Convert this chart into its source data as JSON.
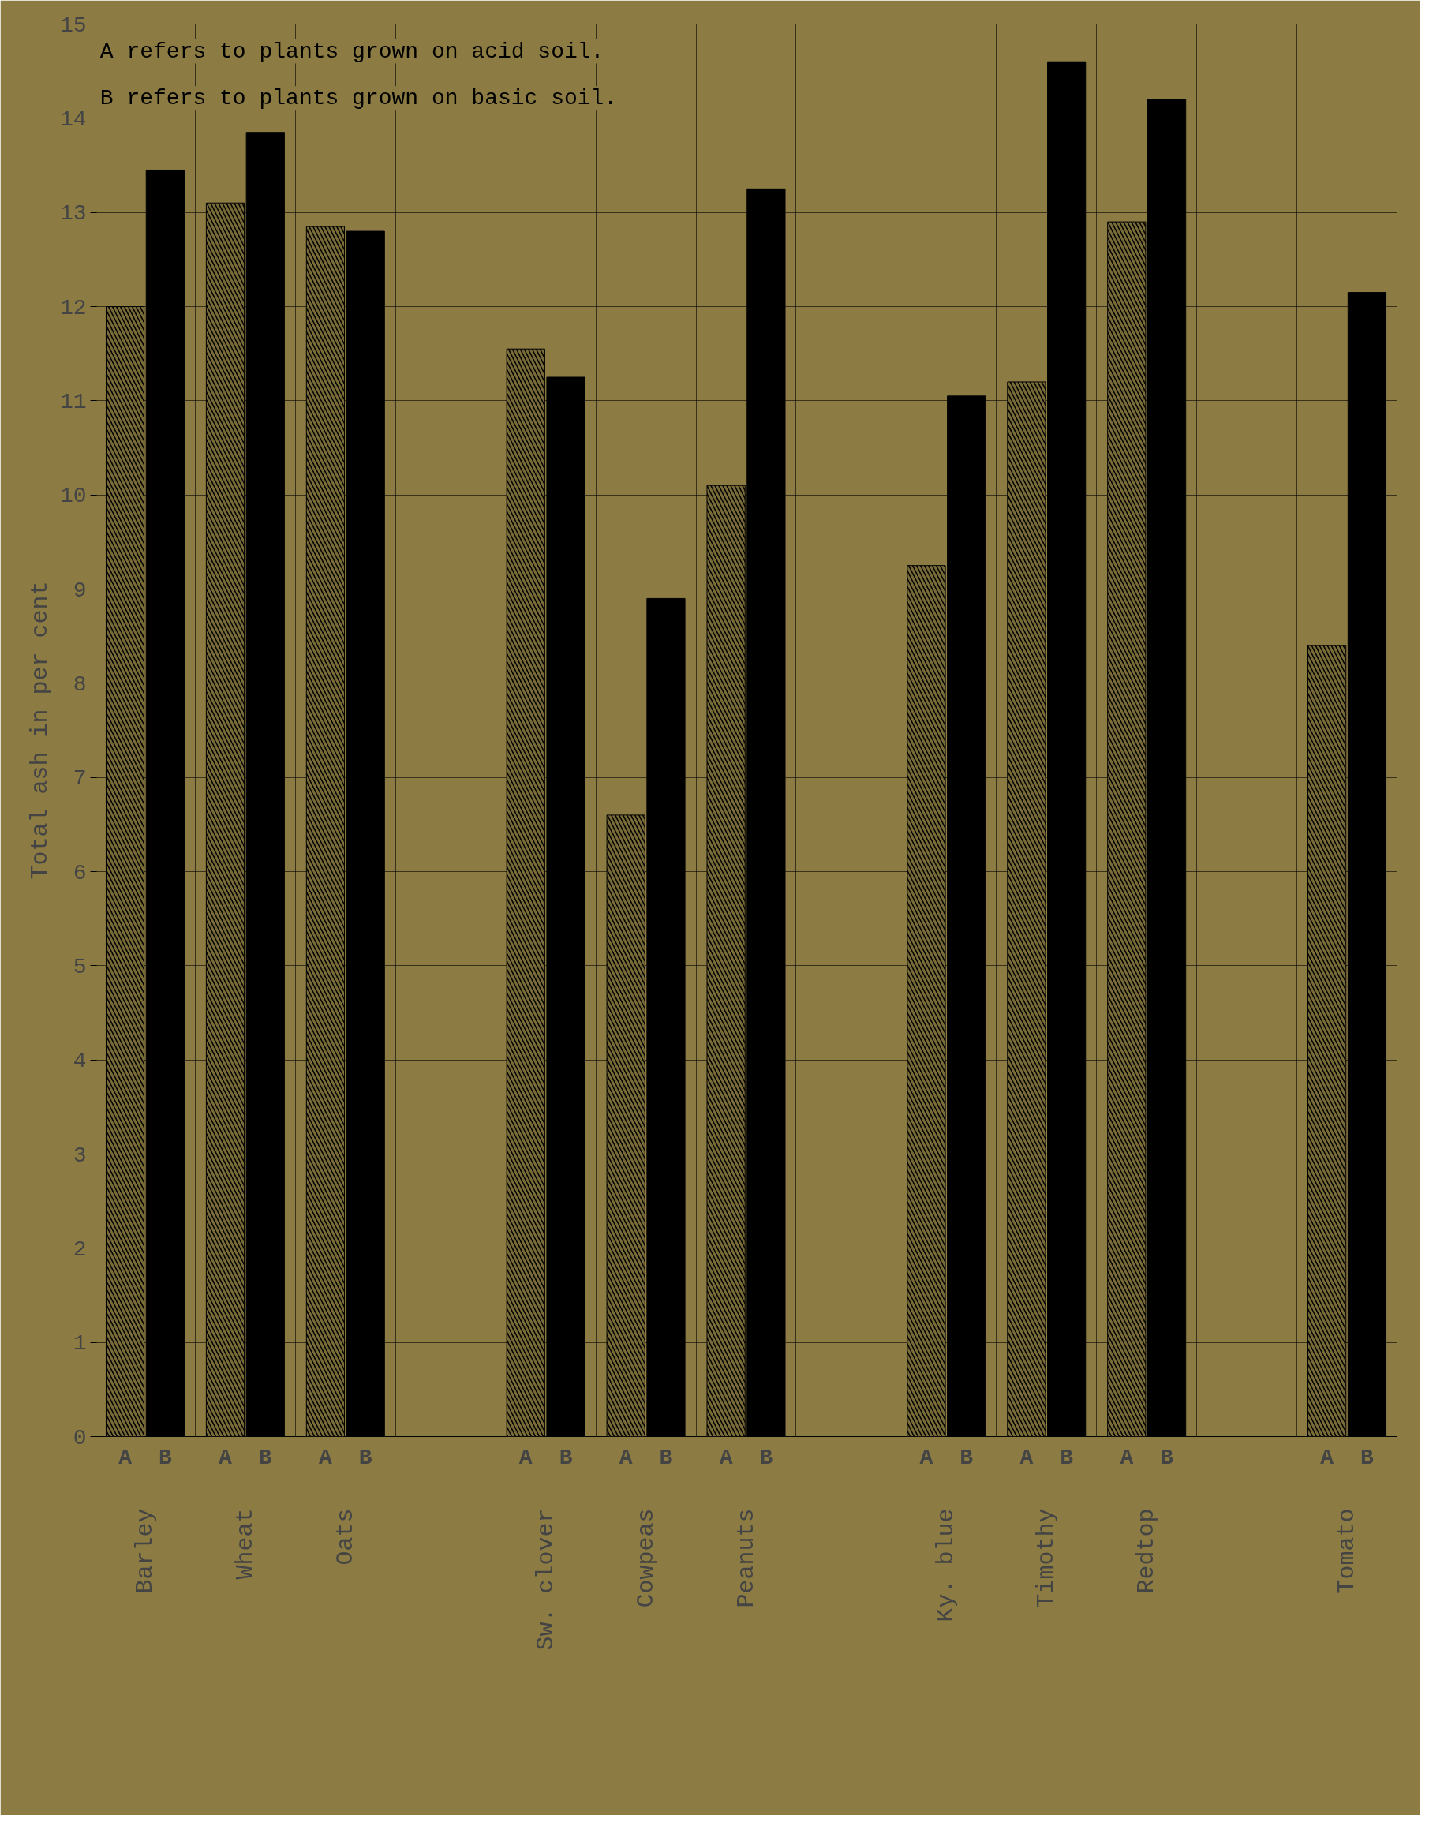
{
  "chart_data": {
    "type": "bar",
    "ylabel": "Total ash in per cent",
    "categories": [
      "Barley",
      "Wheat",
      "Oats",
      null,
      "Sw. clover",
      "Cowpeas",
      "Peanuts",
      null,
      "Ky. blue",
      "Timothy",
      "Redtop",
      null,
      "Tomato"
    ],
    "series": [
      {
        "name": "A",
        "color": "#7a6c38",
        "values": [
          12.0,
          13.1,
          12.85,
          null,
          11.55,
          6.6,
          10.1,
          null,
          9.25,
          11.2,
          12.9,
          null,
          8.4
        ]
      },
      {
        "name": "B",
        "color": "#000000",
        "values": [
          13.45,
          13.85,
          12.8,
          null,
          11.25,
          8.9,
          13.25,
          null,
          11.05,
          14.6,
          14.2,
          null,
          12.15
        ]
      }
    ],
    "ylim": [
      0,
      15
    ],
    "yticks": [
      0,
      1,
      2,
      3,
      4,
      5,
      6,
      7,
      8,
      9,
      10,
      11,
      12,
      13,
      14,
      15
    ],
    "grid": true,
    "annotations": [
      "A refers to plants grown on acid soil.",
      "B refers to plants grown on basic soil."
    ]
  }
}
